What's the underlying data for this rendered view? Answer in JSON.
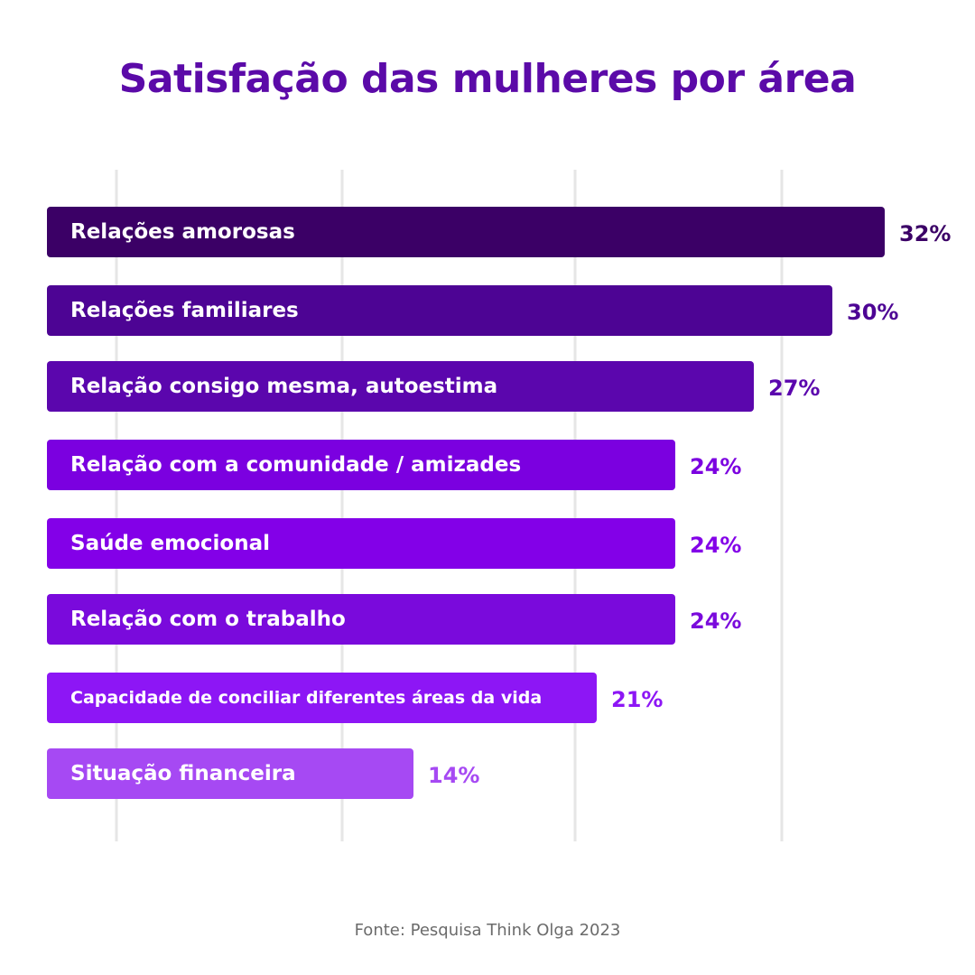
{
  "chart_data": {
    "type": "bar",
    "orientation": "horizontal",
    "title": "Satisfação das mulheres por área",
    "categories": [
      "Relações amorosas",
      "Relações familiares",
      "Relação consigo mesma, autoestima",
      "Relação com a comunidade / amizades",
      "Saúde emocional",
      "Relação com o trabalho",
      "Capacidade de conciliar diferentes áreas da vida",
      "Situação financeira"
    ],
    "values": [
      32,
      30,
      27,
      24,
      24,
      24,
      21,
      14
    ],
    "value_labels": [
      "32%",
      "30%",
      "27%",
      "24%",
      "24%",
      "24%",
      "21%",
      "14%"
    ],
    "bar_colors": [
      "#3b0066",
      "#4d0494",
      "#5b06ad",
      "#7b00e0",
      "#8300e8",
      "#7a0adc",
      "#8d16f5",
      "#a649f3"
    ],
    "value_label_colors": [
      "#3b0066",
      "#4d0494",
      "#5b06ad",
      "#7b00e0",
      "#8300e8",
      "#7a0adc",
      "#8d16f5",
      "#a649f3"
    ],
    "xlabel": "",
    "ylabel": "",
    "grid": true,
    "legend": "none"
  },
  "source": "Fonte: Pesquisa Think Olga 2023"
}
